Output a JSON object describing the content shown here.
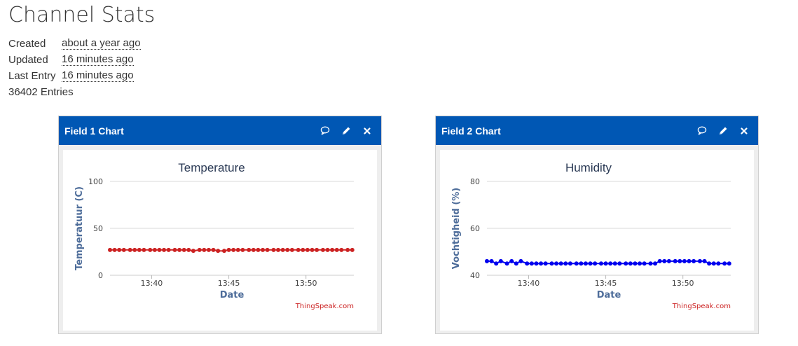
{
  "page": {
    "title": "Channel Stats"
  },
  "stats": {
    "created_label": "Created",
    "created_value": "about a year ago",
    "updated_label": "Updated",
    "updated_value": "16 minutes ago",
    "last_entry_label": "Last Entry",
    "last_entry_value": "16 minutes ago",
    "entries_text": "36402 Entries"
  },
  "header_color": "#0057b4",
  "icons": [
    "comment-icon",
    "pencil-icon",
    "close-icon"
  ],
  "charts": [
    {
      "header": "Field 1 Chart",
      "credit": "ThingSpeak.com",
      "chart_data": {
        "type": "line",
        "title": "Temperature",
        "xlabel": "Date",
        "ylabel": "Temperatuur (C)",
        "ylim": [
          0,
          100
        ],
        "yticks": [
          "0",
          "50",
          "100"
        ],
        "xticks": [
          "13:40",
          "13:45",
          "13:50"
        ],
        "xlim": [
          37.3,
          53.1
        ],
        "grid": true,
        "series": [
          {
            "color": "#cc2222",
            "x": [
              37.3,
              37.6,
              37.9,
              38.2,
              38.6,
              38.9,
              39.2,
              39.5,
              39.9,
              40.2,
              40.5,
              40.8,
              41.1,
              41.5,
              41.8,
              42.1,
              42.4,
              42.7,
              43.1,
              43.4,
              43.7,
              44.0,
              44.3,
              44.7,
              45.0,
              45.3,
              45.6,
              45.9,
              46.3,
              46.6,
              46.9,
              47.2,
              47.5,
              47.9,
              48.2,
              48.5,
              48.8,
              49.1,
              49.5,
              49.8,
              50.1,
              50.4,
              50.7,
              51.1,
              51.4,
              51.7,
              52.0,
              52.3,
              52.7,
              53.0
            ],
            "y": [
              27,
              27,
              27,
              27,
              27,
              27,
              27,
              27,
              27,
              27,
              27,
              27,
              27,
              27,
              27,
              27,
              27,
              26,
              27,
              27,
              27,
              27,
              26,
              26,
              27,
              27,
              27,
              27,
              27,
              27,
              27,
              27,
              27,
              27,
              27,
              27,
              27,
              27,
              27,
              27,
              27,
              27,
              27,
              27,
              27,
              27,
              27,
              27,
              27,
              27
            ]
          }
        ]
      }
    },
    {
      "header": "Field 2 Chart",
      "credit": "ThingSpeak.com",
      "chart_data": {
        "type": "line",
        "title": "Humidity",
        "xlabel": "Date",
        "ylabel": "Vochtigheid (%)",
        "ylim": [
          40,
          80
        ],
        "yticks": [
          "40",
          "60",
          "80"
        ],
        "xticks": [
          "13:40",
          "13:45",
          "13:50"
        ],
        "xlim": [
          37.3,
          53.1
        ],
        "grid": true,
        "series": [
          {
            "color": "#0000ee",
            "x": [
              37.3,
              37.6,
              37.9,
              38.2,
              38.6,
              38.9,
              39.2,
              39.5,
              39.9,
              40.2,
              40.5,
              40.8,
              41.1,
              41.5,
              41.8,
              42.1,
              42.4,
              42.7,
              43.1,
              43.4,
              43.7,
              44.0,
              44.3,
              44.7,
              45.0,
              45.3,
              45.6,
              45.9,
              46.3,
              46.6,
              46.9,
              47.2,
              47.5,
              47.9,
              48.2,
              48.5,
              48.8,
              49.1,
              49.5,
              49.8,
              50.1,
              50.4,
              50.7,
              51.1,
              51.4,
              51.7,
              52.0,
              52.3,
              52.7,
              53.0
            ],
            "y": [
              46,
              46,
              45,
              46,
              45,
              46,
              45,
              46,
              45,
              45,
              45,
              45,
              45,
              45,
              45,
              45,
              45,
              45,
              45,
              45,
              45,
              45,
              45,
              45,
              45,
              45,
              45,
              45,
              45,
              45,
              45,
              45,
              45,
              45,
              45,
              46,
              46,
              46,
              46,
              46,
              46,
              46,
              46,
              46,
              46,
              45,
              45,
              45,
              45,
              45
            ]
          }
        ]
      }
    }
  ]
}
